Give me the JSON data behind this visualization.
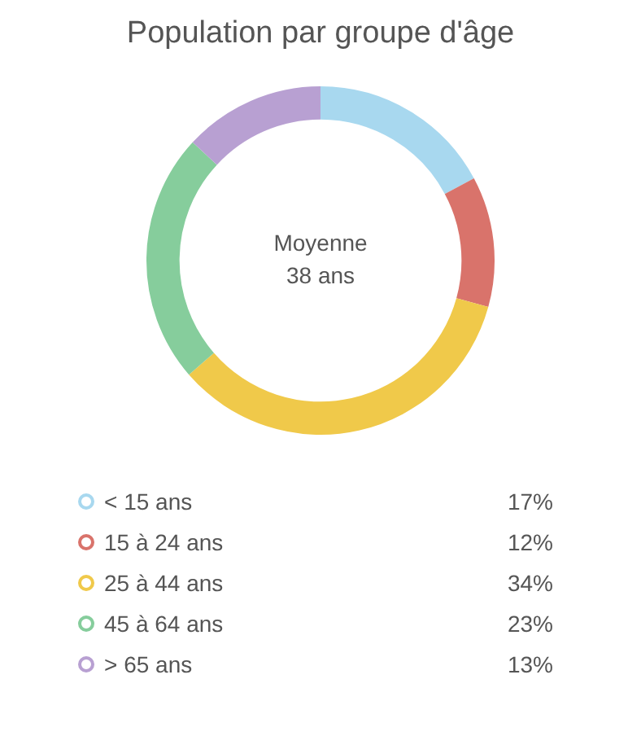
{
  "chart_data": {
    "type": "donut",
    "title": "Population par groupe d'âge",
    "categories": [
      "< 15 ans",
      "15 à 24 ans",
      "25 à 44 ans",
      "45 à 64 ans",
      "> 65 ans"
    ],
    "values": [
      17,
      12,
      34,
      23,
      13
    ],
    "colors": [
      "#a8d8ef",
      "#d9736b",
      "#f0c94a",
      "#86cd9c",
      "#b8a0d2"
    ],
    "value_labels": [
      "17%",
      "12%",
      "34%",
      "23%",
      "13%"
    ],
    "annotations": [
      "Moyenne\n38 ans"
    ],
    "legend": "bottom"
  }
}
